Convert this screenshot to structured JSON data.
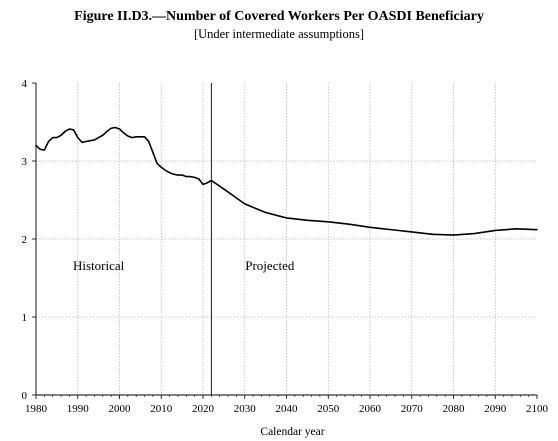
{
  "chart_data": {
    "type": "line",
    "title": "Figure II.D3.—Number of Covered Workers Per OASDI Beneficiary",
    "subtitle": "[Under intermediate assumptions]",
    "xlabel": "Calendar year",
    "ylabel": "",
    "xlim": [
      1980,
      2100
    ],
    "ylim": [
      0,
      4
    ],
    "x_ticks": [
      1980,
      1990,
      2000,
      2010,
      2020,
      2030,
      2040,
      2050,
      2060,
      2070,
      2080,
      2090,
      2100
    ],
    "y_ticks": [
      0,
      1,
      2,
      3,
      4
    ],
    "grid": true,
    "divider_year": 2022,
    "annotations": [
      {
        "text": "Historical",
        "x": 1995,
        "y": 1.6
      },
      {
        "text": "Projected",
        "x": 2036,
        "y": 1.6
      }
    ],
    "series": [
      {
        "x": [
          1980,
          1981,
          1982,
          1983,
          1984,
          1985,
          1986,
          1987,
          1988,
          1989,
          1990,
          1991,
          1992,
          1993,
          1994,
          1995,
          1996,
          1997,
          1998,
          1999,
          2000,
          2001,
          2002,
          2003,
          2004,
          2005,
          2006,
          2007,
          2008,
          2009,
          2010,
          2011,
          2012,
          2013,
          2014,
          2015,
          2016,
          2017,
          2018,
          2019,
          2020,
          2021,
          2022,
          2025,
          2030,
          2035,
          2040,
          2045,
          2050,
          2055,
          2060,
          2065,
          2070,
          2075,
          2080,
          2085,
          2090,
          2095,
          2100
        ],
        "values": [
          3.2,
          3.15,
          3.14,
          3.25,
          3.3,
          3.3,
          3.33,
          3.38,
          3.41,
          3.4,
          3.3,
          3.24,
          3.25,
          3.26,
          3.27,
          3.3,
          3.33,
          3.38,
          3.42,
          3.43,
          3.41,
          3.36,
          3.32,
          3.3,
          3.31,
          3.31,
          3.31,
          3.25,
          3.11,
          2.97,
          2.92,
          2.88,
          2.85,
          2.83,
          2.82,
          2.82,
          2.8,
          2.8,
          2.79,
          2.77,
          2.7,
          2.72,
          2.75,
          2.64,
          2.45,
          2.34,
          2.27,
          2.24,
          2.22,
          2.19,
          2.15,
          2.12,
          2.09,
          2.06,
          2.05,
          2.07,
          2.11,
          2.13,
          2.12
        ]
      }
    ]
  }
}
